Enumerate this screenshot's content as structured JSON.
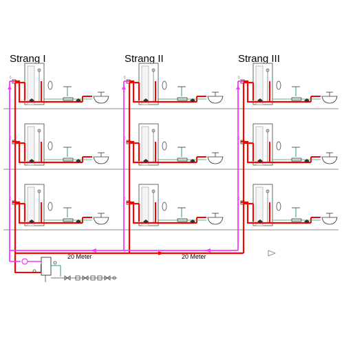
{
  "risers": [
    {
      "label": "Strang I"
    },
    {
      "label": "Strang II"
    },
    {
      "label": "Strang III"
    }
  ],
  "distances": [
    {
      "label": "20 Meter"
    },
    {
      "label": "20 Meter"
    }
  ],
  "floors": 3,
  "colors": {
    "hot_water": "#ff0000",
    "circulation": "#ff33ff",
    "cold_water": "#20a060",
    "fixture": "#333333",
    "floor_line": "#888888"
  }
}
